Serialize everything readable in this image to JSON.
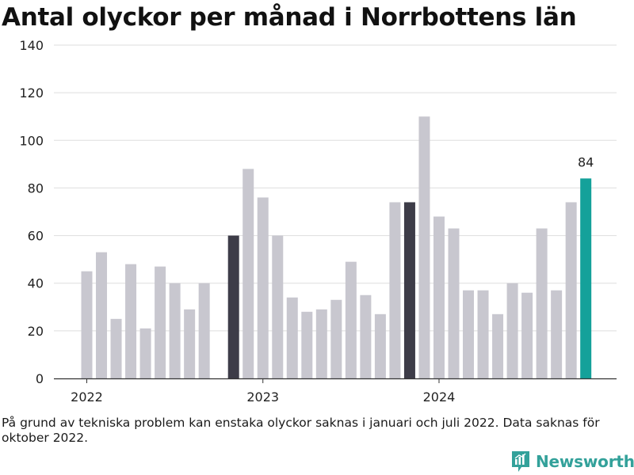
{
  "title": "Antal olyckor per månad i Norrbottens län",
  "note": "På grund av tekniska problem kan enstaka olyckor saknas i januari och juli 2022. Data saknas för oktober 2022.",
  "brand": {
    "name": "Newsworthy",
    "color": "#33a19a",
    "icon": "newsworthy-logo-icon"
  },
  "colors": {
    "default": "#c8c7cf",
    "highlight": "#3d3c48",
    "current": "#14a19a"
  },
  "chart_data": {
    "type": "bar",
    "title": "Antal olyckor per månad i Norrbottens län",
    "xlabel": "",
    "ylabel": "",
    "ylim": [
      0,
      140
    ],
    "yticks": [
      0,
      20,
      40,
      60,
      80,
      100,
      120,
      140
    ],
    "x_tick_labels": [
      {
        "label": "2022",
        "category": "2022-01"
      },
      {
        "label": "2023",
        "category": "2023-01"
      },
      {
        "label": "2024",
        "category": "2024-01"
      }
    ],
    "grid": true,
    "categories": [
      "2022-01",
      "2022-02",
      "2022-03",
      "2022-04",
      "2022-05",
      "2022-06",
      "2022-07",
      "2022-08",
      "2022-09",
      "2022-10",
      "2022-11",
      "2022-12",
      "2023-01",
      "2023-02",
      "2023-03",
      "2023-04",
      "2023-05",
      "2023-06",
      "2023-07",
      "2023-08",
      "2023-09",
      "2023-10",
      "2023-11",
      "2023-12",
      "2024-01",
      "2024-02",
      "2024-03",
      "2024-04",
      "2024-05",
      "2024-06",
      "2024-07",
      "2024-08",
      "2024-09",
      "2024-10",
      "2024-11",
      "2024-12"
    ],
    "values": [
      45,
      53,
      25,
      48,
      21,
      47,
      40,
      29,
      40,
      null,
      60,
      88,
      76,
      60,
      34,
      28,
      29,
      33,
      49,
      35,
      27,
      74,
      74,
      110,
      68,
      63,
      37,
      37,
      27,
      40,
      36,
      63,
      37,
      74,
      84,
      null
    ],
    "highlighted": [
      "2022-11",
      "2023-11"
    ],
    "current": "2024-11",
    "data_labels": [
      {
        "category": "2024-11",
        "value": 84,
        "text": "84"
      }
    ]
  }
}
